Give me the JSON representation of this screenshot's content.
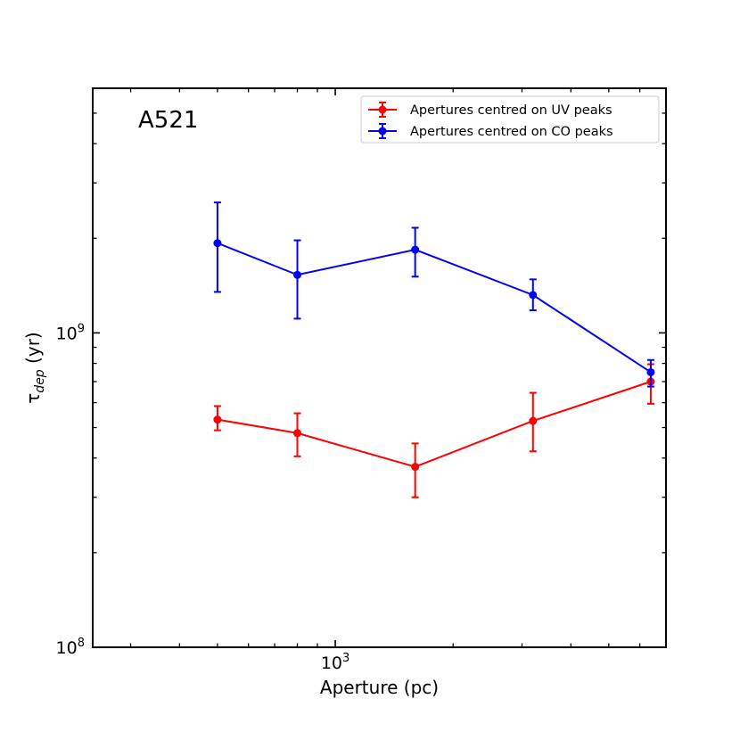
{
  "chart_data": {
    "type": "line",
    "panel_label": "A521",
    "xlabel": "Aperture (pc)",
    "ylabel": {
      "base": "τ",
      "subscript": "dep",
      "suffix": " (yr)"
    },
    "x_scale": "log",
    "y_scale": "log",
    "xlim": [
      240,
      7000
    ],
    "ylim": [
      100000000,
      6000000000
    ],
    "x_ticks": [
      {
        "value": 1000,
        "base": "10",
        "exp": "3"
      }
    ],
    "y_ticks": [
      {
        "value": 100000000,
        "base": "10",
        "exp": "8"
      },
      {
        "value": 1000000000,
        "base": "10",
        "exp": "9"
      }
    ],
    "grid": false,
    "legend_position": "top-right",
    "series": [
      {
        "name": "Apertures centred on UV peaks",
        "color": "#ff0000",
        "x": [
          500,
          800,
          1600,
          3200,
          6400
        ],
        "y": [
          530000000,
          480000000,
          375000000,
          525000000,
          700000000
        ],
        "err_low": [
          490000000,
          405000000,
          300000000,
          420000000,
          595000000
        ],
        "err_high": [
          585000000,
          555000000,
          445000000,
          645000000,
          795000000
        ]
      },
      {
        "name": "Apertures centred on CO peaks",
        "color": "#0000ff",
        "x": [
          500,
          800,
          1600,
          3200,
          6400
        ],
        "y": [
          1930000000,
          1530000000,
          1840000000,
          1320000000,
          750000000
        ],
        "err_low": [
          1350000000,
          1110000000,
          1510000000,
          1180000000,
          675000000
        ],
        "err_high": [
          2600000000,
          1970000000,
          2160000000,
          1480000000,
          820000000
        ]
      }
    ]
  }
}
